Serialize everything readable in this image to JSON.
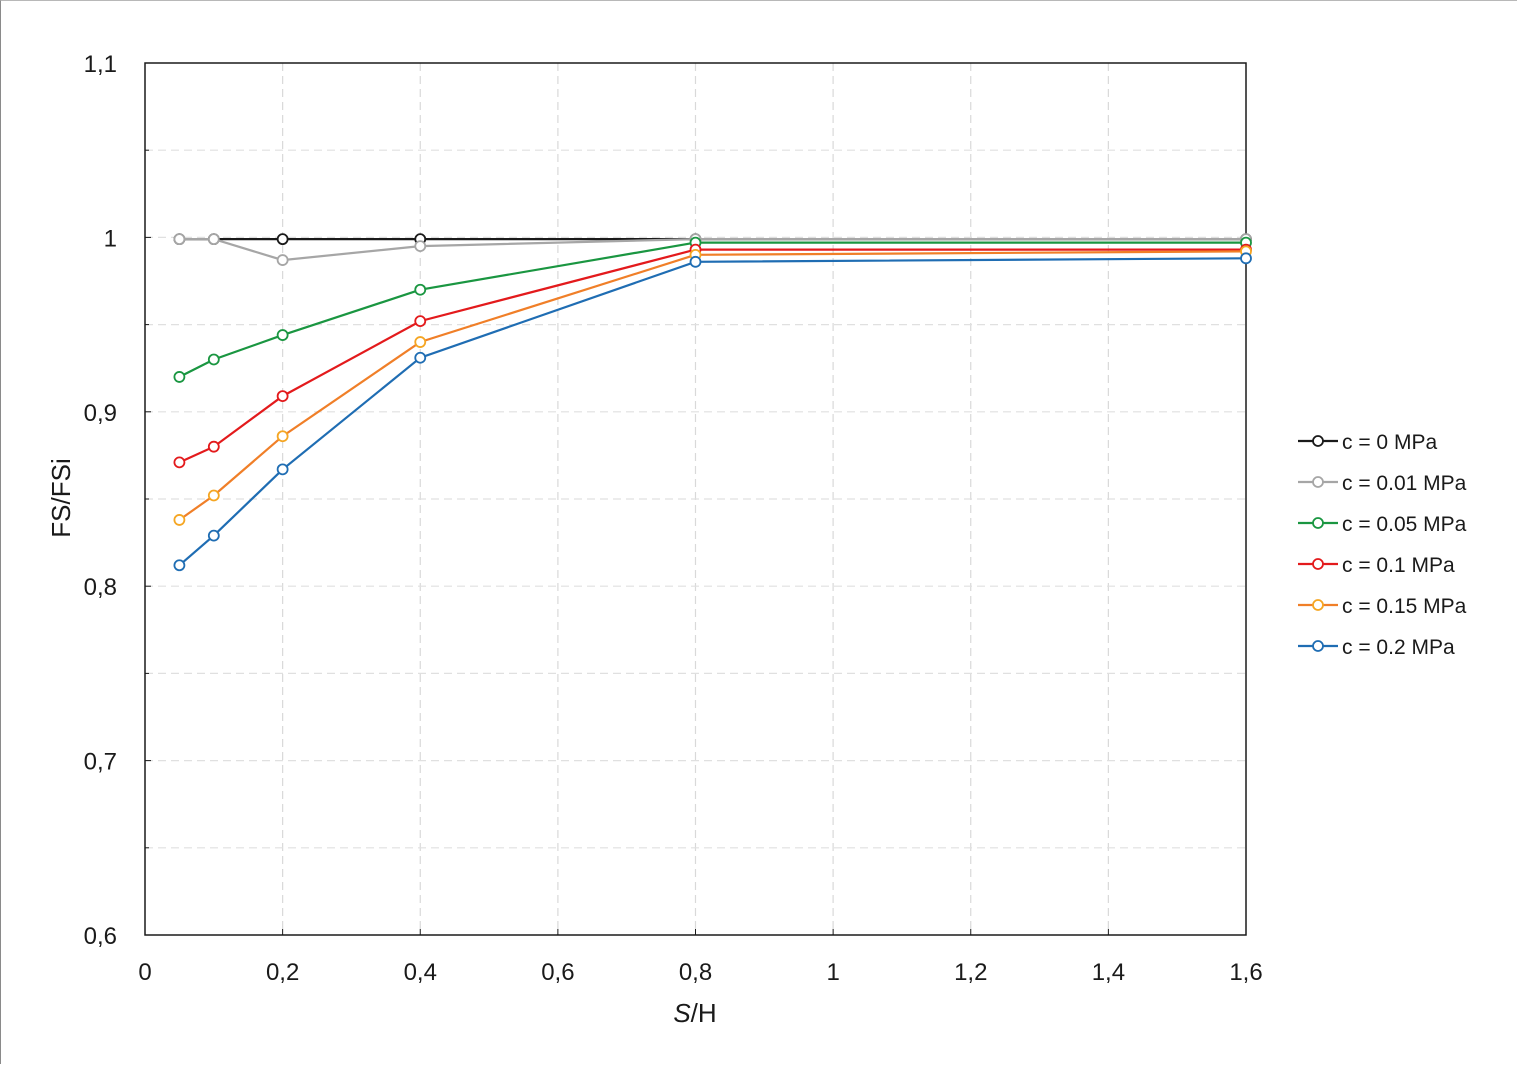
{
  "chart_data": {
    "type": "line",
    "xlabel_italic": "S",
    "xlabel_rest": "/H",
    "ylabel": "FS/FSi",
    "xlim": [
      0,
      1.6
    ],
    "ylim": [
      0.6,
      1.1
    ],
    "x_ticks": [
      {
        "value": 0,
        "label": "0"
      },
      {
        "value": 0.2,
        "label": "0,2"
      },
      {
        "value": 0.4,
        "label": "0,4"
      },
      {
        "value": 0.6,
        "label": "0,6"
      },
      {
        "value": 0.8,
        "label": "0,8"
      },
      {
        "value": 1.0,
        "label": "1"
      },
      {
        "value": 1.2,
        "label": "1,2"
      },
      {
        "value": 1.4,
        "label": "1,4"
      },
      {
        "value": 1.6,
        "label": "1,6"
      }
    ],
    "y_ticks": [
      {
        "value": 0.6,
        "label": "0,6"
      },
      {
        "value": 0.7,
        "label": "0,7"
      },
      {
        "value": 0.8,
        "label": "0,8"
      },
      {
        "value": 0.9,
        "label": "0,9"
      },
      {
        "value": 1.0,
        "label": "1"
      },
      {
        "value": 1.1,
        "label": "1,1"
      }
    ],
    "y_minor_ticks": [
      0.65,
      0.75,
      0.85,
      0.95,
      1.05
    ],
    "grid": true,
    "legend_position": "right",
    "x": [
      0.05,
      0.1,
      0.2,
      0.4,
      0.8,
      1.6
    ],
    "series": [
      {
        "name": "c = 0 MPa",
        "line_color": "#1a1a1a",
        "marker_color": "#1a1a1a",
        "values": [
          0.999,
          0.999,
          0.999,
          0.999,
          0.999,
          0.999
        ]
      },
      {
        "name": "c = 0.01 MPa",
        "line_color": "#a6a6a6",
        "marker_color": "#a6a6a6",
        "values": [
          0.999,
          0.999,
          0.987,
          0.995,
          0.999,
          0.999
        ]
      },
      {
        "name": "c = 0.05 MPa",
        "line_color": "#1a9641",
        "marker_color": "#1a9641",
        "values": [
          0.92,
          0.93,
          0.944,
          0.97,
          0.997,
          0.997
        ]
      },
      {
        "name": "c = 0.1 MPa",
        "line_color": "#e31a1c",
        "marker_color": "#e31a1c",
        "values": [
          0.871,
          0.88,
          0.909,
          0.952,
          0.993,
          0.993
        ]
      },
      {
        "name": "c = 0.15 MPa",
        "line_color": "#f07f28",
        "marker_color": "#f5a623",
        "values": [
          0.838,
          0.852,
          0.886,
          0.94,
          0.99,
          0.992
        ]
      },
      {
        "name": "c = 0.2 MPa",
        "line_color": "#1f6db3",
        "marker_color": "#1f6db3",
        "values": [
          0.812,
          0.829,
          0.867,
          0.931,
          0.986,
          0.988
        ]
      }
    ]
  }
}
